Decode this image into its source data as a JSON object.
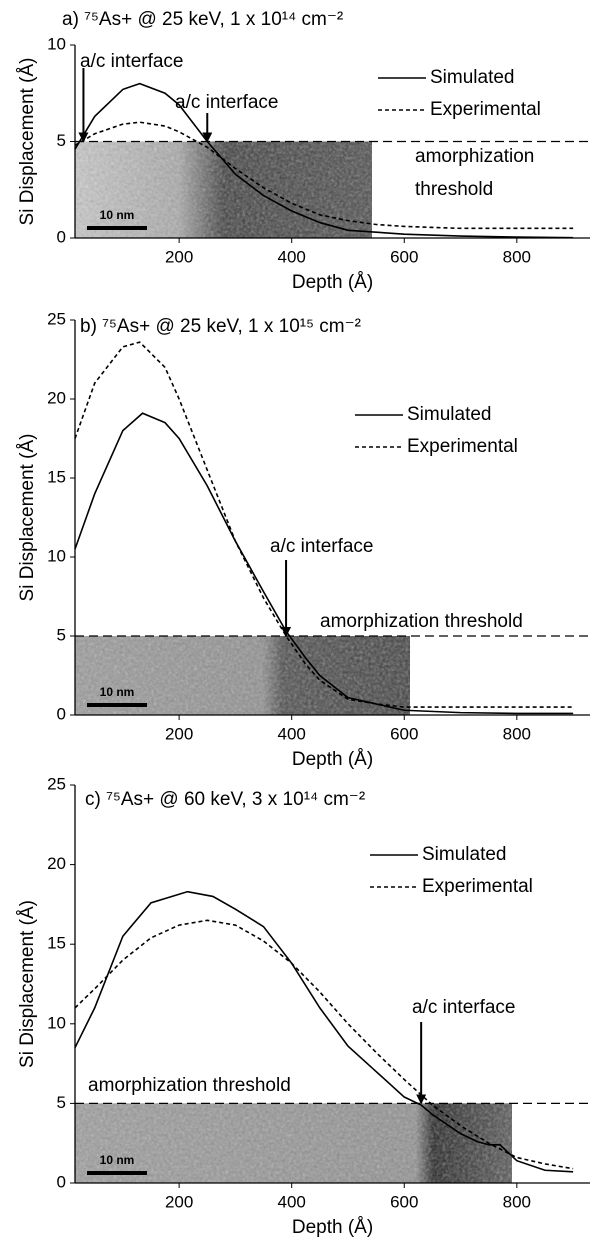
{
  "chart_data": [
    {
      "type": "line",
      "title": "a) ⁷⁵As+ @ 25 keV, 1 x 10¹⁴ cm⁻²",
      "xlabel": "Depth (Å)",
      "ylabel": "Si Displacement (Å)",
      "xlim": [
        15,
        930
      ],
      "ylim": [
        0,
        10
      ],
      "xticks": [
        200,
        400,
        600,
        800
      ],
      "yticks": [
        0,
        5,
        10
      ],
      "legend": "upper right",
      "threshold": 5,
      "threshold_label": [
        "amorphization",
        "threshold"
      ],
      "scale_bar": "10 nm",
      "annotations": [
        {
          "text": "a/c interface",
          "x": 30
        },
        {
          "text": "a/c interface",
          "x": 250
        }
      ],
      "series": [
        {
          "name": "Simulated",
          "color": "#000000",
          "dash": "solid",
          "x": [
            15,
            50,
            100,
            130,
            175,
            200,
            250,
            300,
            350,
            400,
            450,
            500,
            550,
            600,
            700,
            800,
            900
          ],
          "values": [
            4.6,
            6.3,
            7.7,
            8.0,
            7.5,
            6.9,
            5.0,
            3.3,
            2.2,
            1.4,
            0.8,
            0.4,
            0.3,
            0.2,
            0.1,
            0.05,
            0.02
          ]
        },
        {
          "name": "Experimental",
          "color": "#000000",
          "dash": "dashed",
          "x": [
            15,
            50,
            100,
            130,
            175,
            200,
            250,
            300,
            350,
            400,
            450,
            500,
            550,
            600,
            700,
            800,
            900
          ],
          "values": [
            4.8,
            5.4,
            5.9,
            6.0,
            5.8,
            5.5,
            4.7,
            3.6,
            2.6,
            1.8,
            1.2,
            0.9,
            0.7,
            0.6,
            0.5,
            0.5,
            0.5
          ]
        }
      ]
    },
    {
      "type": "line",
      "title": "b) ⁷⁵As+ @ 25 keV, 1 x 10¹⁵ cm⁻²",
      "xlabel": "Depth (Å)",
      "ylabel": "Si Displacement (Å)",
      "xlim": [
        15,
        930
      ],
      "ylim": [
        0,
        25
      ],
      "xticks": [
        200,
        400,
        600,
        800
      ],
      "yticks": [
        0,
        5,
        10,
        15,
        20,
        25
      ],
      "legend": "upper right",
      "threshold": 5,
      "threshold_label": [
        "amorphization threshold"
      ],
      "scale_bar": "10 nm",
      "annotations": [
        {
          "text": "a/c interface",
          "x": 390
        }
      ],
      "series": [
        {
          "name": "Simulated",
          "color": "#000000",
          "dash": "solid",
          "x": [
            15,
            50,
            100,
            135,
            175,
            200,
            250,
            300,
            350,
            390,
            425,
            450,
            500,
            550,
            600,
            700,
            800,
            900
          ],
          "values": [
            10.5,
            14,
            18,
            19.1,
            18.5,
            17.5,
            14.5,
            11,
            7.8,
            5.3,
            3.6,
            2.5,
            1.1,
            0.7,
            0.3,
            0.15,
            0.1,
            0.1
          ]
        },
        {
          "name": "Experimental",
          "color": "#000000",
          "dash": "dashed",
          "x": [
            15,
            50,
            100,
            130,
            175,
            200,
            250,
            300,
            350,
            390,
            425,
            450,
            500,
            550,
            600,
            700,
            800,
            900
          ],
          "values": [
            17.5,
            21,
            23.3,
            23.6,
            22,
            20,
            15.5,
            11,
            7.4,
            5.0,
            3.2,
            2.2,
            1.0,
            0.7,
            0.5,
            0.5,
            0.5,
            0.5
          ]
        }
      ]
    },
    {
      "type": "line",
      "title": "c) ⁷⁵As+ @ 60 keV, 3 x 10¹⁴ cm⁻²",
      "xlabel": "Depth (Å)",
      "ylabel": "Si Displacement (Å)",
      "xlim": [
        15,
        930
      ],
      "ylim": [
        0,
        25
      ],
      "xticks": [
        200,
        400,
        600,
        800
      ],
      "yticks": [
        0,
        5,
        10,
        15,
        20,
        25
      ],
      "legend": "upper right",
      "threshold": 5,
      "threshold_label": [
        "amorphization threshold"
      ],
      "scale_bar": "10 nm",
      "annotations": [
        {
          "text": "a/c interface",
          "x": 630
        }
      ],
      "series": [
        {
          "name": "Simulated",
          "color": "#000000",
          "dash": "solid",
          "x": [
            15,
            50,
            100,
            150,
            215,
            260,
            300,
            350,
            400,
            450,
            500,
            550,
            600,
            630,
            650,
            700,
            730,
            750,
            770,
            800,
            850,
            900
          ],
          "values": [
            8.5,
            11,
            15.5,
            17.6,
            18.3,
            18.0,
            17.2,
            16.1,
            13.8,
            11,
            8.6,
            7.0,
            5.4,
            4.9,
            4.3,
            3.1,
            2.6,
            2.4,
            2.4,
            1.4,
            0.8,
            0.7
          ]
        },
        {
          "name": "Experimental",
          "color": "#000000",
          "dash": "dashed",
          "x": [
            15,
            50,
            100,
            150,
            200,
            250,
            300,
            350,
            400,
            450,
            500,
            550,
            600,
            650,
            700,
            750,
            800,
            850,
            900
          ],
          "values": [
            11,
            12.2,
            14,
            15.4,
            16.2,
            16.5,
            16.2,
            15.2,
            13.8,
            12,
            10,
            8.2,
            6.5,
            4.9,
            3.6,
            2.5,
            1.6,
            1.2,
            0.9
          ]
        }
      ]
    }
  ]
}
